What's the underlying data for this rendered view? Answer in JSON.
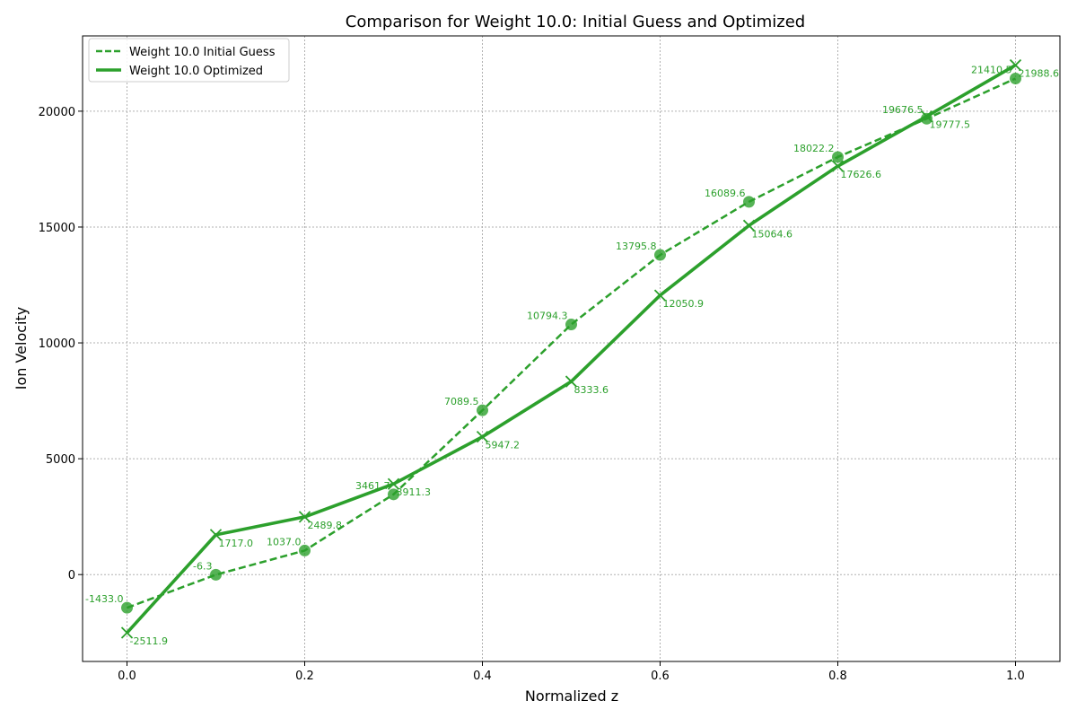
{
  "chart_data": {
    "type": "line",
    "title": "Comparison for Weight 10.0: Initial Guess and Optimized",
    "xlabel": "Normalized z",
    "ylabel": "Ion Velocity",
    "xlim": [
      -0.05,
      1.05
    ],
    "ylim": [
      -3750,
      23250
    ],
    "xticks": [
      0.0,
      0.2,
      0.4,
      0.6,
      0.8,
      1.0
    ],
    "xtick_labels": [
      "0.0",
      "0.2",
      "0.4",
      "0.6",
      "0.8",
      "1.0"
    ],
    "yticks": [
      0,
      5000,
      10000,
      15000,
      20000
    ],
    "ytick_labels": [
      "0",
      "5000",
      "10000",
      "15000",
      "20000"
    ],
    "grid": true,
    "legend_position": "upper-left",
    "x": [
      0.0,
      0.1,
      0.2,
      0.3,
      0.4,
      0.5,
      0.6,
      0.7,
      0.8,
      0.9,
      1.0
    ],
    "series": [
      {
        "name": "Weight 10.0 Initial Guess",
        "style": "dashed",
        "marker": "circle",
        "color": "#2ca02c",
        "values": [
          -1433.0,
          -6.3,
          1037.0,
          3461.7,
          7089.5,
          10794.3,
          13795.8,
          16089.6,
          18022.2,
          19676.5,
          21410.5
        ],
        "labels": [
          "-1433.0",
          "-6.3",
          "1037.0",
          "3461.7",
          "7089.5",
          "10794.3",
          "13795.8",
          "16089.6",
          "18022.2",
          "19676.5",
          "21410.5"
        ]
      },
      {
        "name": "Weight 10.0 Optimized",
        "style": "solid",
        "marker": "x",
        "color": "#2ca02c",
        "values": [
          -2511.9,
          1717.0,
          2489.8,
          3911.3,
          5947.2,
          8333.6,
          12050.9,
          15064.6,
          17626.6,
          19777.5,
          21988.6
        ],
        "labels": [
          "-2511.9",
          "1717.0",
          "2489.8",
          "3911.3",
          "5947.2",
          "8333.6",
          "12050.9",
          "15064.6",
          "17626.6",
          "19777.5",
          "21988.6"
        ]
      }
    ]
  }
}
